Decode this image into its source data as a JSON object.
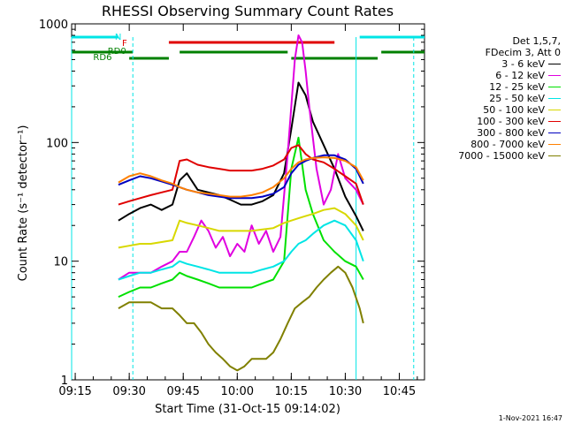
{
  "chart_data": {
    "type": "line",
    "title": "RHESSI Observing Summary Count Rates",
    "xlabel": "Start Time (31-Oct-15 09:14:02)",
    "ylabel": "Count Rate (s⁻¹ detector⁻¹)",
    "y_scale": "log",
    "ylim": [
      1,
      1000
    ],
    "xlim": [
      "09:14",
      "10:52"
    ],
    "x_ticks": [
      "09:15",
      "09:30",
      "09:45",
      "10:00",
      "10:15",
      "10:30",
      "10:45"
    ],
    "y_ticks": [
      "1",
      "10",
      "100",
      "1000"
    ],
    "legend_header": [
      "Det 1,5,7,",
      "FDecim 3, Att 0"
    ],
    "legend_placement": "right",
    "annotations": {
      "flags": [
        {
          "label": "N",
          "color": "#00e5e5"
        },
        {
          "label": "F",
          "color": "#e00000"
        },
        {
          "label": "RD0",
          "color": "#008000"
        },
        {
          "label": "RD6",
          "color": "#008000"
        }
      ]
    },
    "series": [
      {
        "name": "3 - 6 keV",
        "color": "#000000",
        "x": [
          "09:27",
          "09:30",
          "09:33",
          "09:36",
          "09:39",
          "09:42",
          "09:44",
          "09:46",
          "09:49",
          "09:52",
          "09:55",
          "09:58",
          "10:01",
          "10:04",
          "10:07",
          "10:10",
          "10:13",
          "10:15",
          "10:17",
          "10:19",
          "10:21",
          "10:24",
          "10:27",
          "10:30",
          "10:33",
          "10:35"
        ],
        "y": [
          22,
          25,
          28,
          30,
          27,
          30,
          48,
          55,
          40,
          38,
          36,
          33,
          30,
          30,
          32,
          36,
          55,
          130,
          320,
          250,
          150,
          95,
          60,
          35,
          24,
          18
        ]
      },
      {
        "name": "6 - 12 keV",
        "color": "#e000e0",
        "x": [
          "09:27",
          "09:30",
          "09:33",
          "09:36",
          "09:39",
          "09:42",
          "09:44",
          "09:46",
          "09:48",
          "09:50",
          "09:52",
          "09:54",
          "09:56",
          "09:58",
          "10:00",
          "10:02",
          "10:04",
          "10:06",
          "10:08",
          "10:10",
          "10:12",
          "10:14",
          "10:16",
          "10:17",
          "10:18",
          "10:19",
          "10:20",
          "10:22",
          "10:24",
          "10:26",
          "10:28",
          "10:30",
          "10:33",
          "10:35"
        ],
        "y": [
          7,
          8,
          8,
          8,
          9,
          10,
          12,
          12,
          16,
          22,
          18,
          13,
          16,
          11,
          14,
          12,
          20,
          14,
          18,
          12,
          16,
          80,
          500,
          800,
          700,
          400,
          200,
          60,
          30,
          40,
          80,
          50,
          40,
          30
        ]
      },
      {
        "name": "12 - 25 keV",
        "color": "#00e000",
        "x": [
          "09:27",
          "09:30",
          "09:33",
          "09:36",
          "09:39",
          "09:42",
          "09:44",
          "09:46",
          "09:49",
          "09:52",
          "09:55",
          "09:58",
          "10:01",
          "10:04",
          "10:07",
          "10:10",
          "10:13",
          "10:15",
          "10:17",
          "10:19",
          "10:21",
          "10:24",
          "10:27",
          "10:30",
          "10:33",
          "10:35"
        ],
        "y": [
          5,
          5.5,
          6,
          6,
          6.5,
          7,
          8,
          7.5,
          7,
          6.5,
          6,
          6,
          6,
          6,
          6.5,
          7,
          10,
          60,
          110,
          40,
          25,
          15,
          12,
          10,
          9,
          7
        ]
      },
      {
        "name": "25 - 50 keV",
        "color": "#00e5e5",
        "x": [
          "09:27",
          "09:30",
          "09:33",
          "09:36",
          "09:39",
          "09:42",
          "09:44",
          "09:46",
          "09:49",
          "09:52",
          "09:55",
          "09:58",
          "10:01",
          "10:04",
          "10:07",
          "10:10",
          "10:13",
          "10:15",
          "10:17",
          "10:19",
          "10:21",
          "10:24",
          "10:27",
          "10:30",
          "10:33",
          "10:35"
        ],
        "y": [
          7,
          7.5,
          8,
          8,
          8.5,
          9,
          10,
          9.5,
          9,
          8.5,
          8,
          8,
          8,
          8,
          8.5,
          9,
          10,
          12,
          14,
          15,
          17,
          20,
          22,
          20,
          15,
          10
        ]
      },
      {
        "name": "50 - 100 keV",
        "color": "#d8d800",
        "x": [
          "09:27",
          "09:30",
          "09:33",
          "09:36",
          "09:39",
          "09:42",
          "09:44",
          "09:46",
          "09:49",
          "09:52",
          "09:55",
          "09:58",
          "10:01",
          "10:04",
          "10:07",
          "10:10",
          "10:13",
          "10:15",
          "10:17",
          "10:19",
          "10:21",
          "10:24",
          "10:27",
          "10:30",
          "10:33",
          "10:35"
        ],
        "y": [
          13,
          13.5,
          14,
          14,
          14.5,
          15,
          22,
          21,
          20,
          19,
          18,
          18,
          18,
          18,
          18.5,
          19,
          21,
          22,
          23,
          24,
          25,
          27,
          28,
          25,
          20,
          15
        ]
      },
      {
        "name": "100 - 300 keV",
        "color": "#e00000",
        "x": [
          "09:27",
          "09:30",
          "09:33",
          "09:36",
          "09:39",
          "09:42",
          "09:44",
          "09:46",
          "09:49",
          "09:52",
          "09:55",
          "09:58",
          "10:01",
          "10:04",
          "10:07",
          "10:10",
          "10:13",
          "10:15",
          "10:17",
          "10:19",
          "10:21",
          "10:24",
          "10:27",
          "10:30",
          "10:33",
          "10:35"
        ],
        "y": [
          30,
          32,
          34,
          36,
          38,
          40,
          70,
          72,
          65,
          62,
          60,
          58,
          58,
          58,
          60,
          64,
          72,
          90,
          95,
          80,
          72,
          68,
          60,
          52,
          45,
          30
        ]
      },
      {
        "name": "300 - 800 keV",
        "color": "#0000c0",
        "x": [
          "09:27",
          "09:30",
          "09:33",
          "09:36",
          "09:39",
          "09:42",
          "09:44",
          "09:46",
          "09:49",
          "09:52",
          "09:55",
          "09:58",
          "10:01",
          "10:04",
          "10:07",
          "10:10",
          "10:13",
          "10:15",
          "10:17",
          "10:19",
          "10:21",
          "10:24",
          "10:27",
          "10:30",
          "10:33",
          "10:35"
        ],
        "y": [
          44,
          48,
          52,
          50,
          47,
          44,
          42,
          40,
          38,
          36,
          35,
          34,
          34,
          34,
          35,
          37,
          42,
          55,
          65,
          70,
          74,
          78,
          78,
          72,
          60,
          45
        ]
      },
      {
        "name": "800 - 7000 keV",
        "color": "#ff8000",
        "x": [
          "09:27",
          "09:30",
          "09:33",
          "09:36",
          "09:39",
          "09:42",
          "09:44",
          "09:46",
          "09:49",
          "09:52",
          "09:55",
          "09:58",
          "10:01",
          "10:04",
          "10:07",
          "10:10",
          "10:13",
          "10:15",
          "10:17",
          "10:19",
          "10:21",
          "10:24",
          "10:27",
          "10:30",
          "10:33",
          "10:35"
        ],
        "y": [
          46,
          52,
          55,
          52,
          48,
          45,
          42,
          40,
          38,
          37,
          36,
          35,
          35,
          36,
          38,
          42,
          50,
          60,
          68,
          72,
          74,
          75,
          74,
          70,
          62,
          48
        ]
      },
      {
        "name": "7000 - 15000 keV",
        "color": "#808000",
        "x": [
          "09:27",
          "09:30",
          "09:33",
          "09:36",
          "09:39",
          "09:42",
          "09:44",
          "09:46",
          "09:48",
          "09:50",
          "09:52",
          "09:54",
          "09:56",
          "09:58",
          "10:00",
          "10:02",
          "10:04",
          "10:06",
          "10:08",
          "10:10",
          "10:12",
          "10:14",
          "10:16",
          "10:18",
          "10:20",
          "10:22",
          "10:24",
          "10:26",
          "10:28",
          "10:30",
          "10:32",
          "10:34",
          "10:35"
        ],
        "y": [
          4,
          4.5,
          4.5,
          4.5,
          4,
          4,
          3.5,
          3,
          3,
          2.5,
          2,
          1.7,
          1.5,
          1.3,
          1.2,
          1.3,
          1.5,
          1.5,
          1.5,
          1.7,
          2.2,
          3,
          4,
          4.5,
          5,
          6,
          7,
          8,
          9,
          8,
          6,
          4,
          3
        ]
      }
    ]
  },
  "footer": "1-Nov-2021 16:47"
}
